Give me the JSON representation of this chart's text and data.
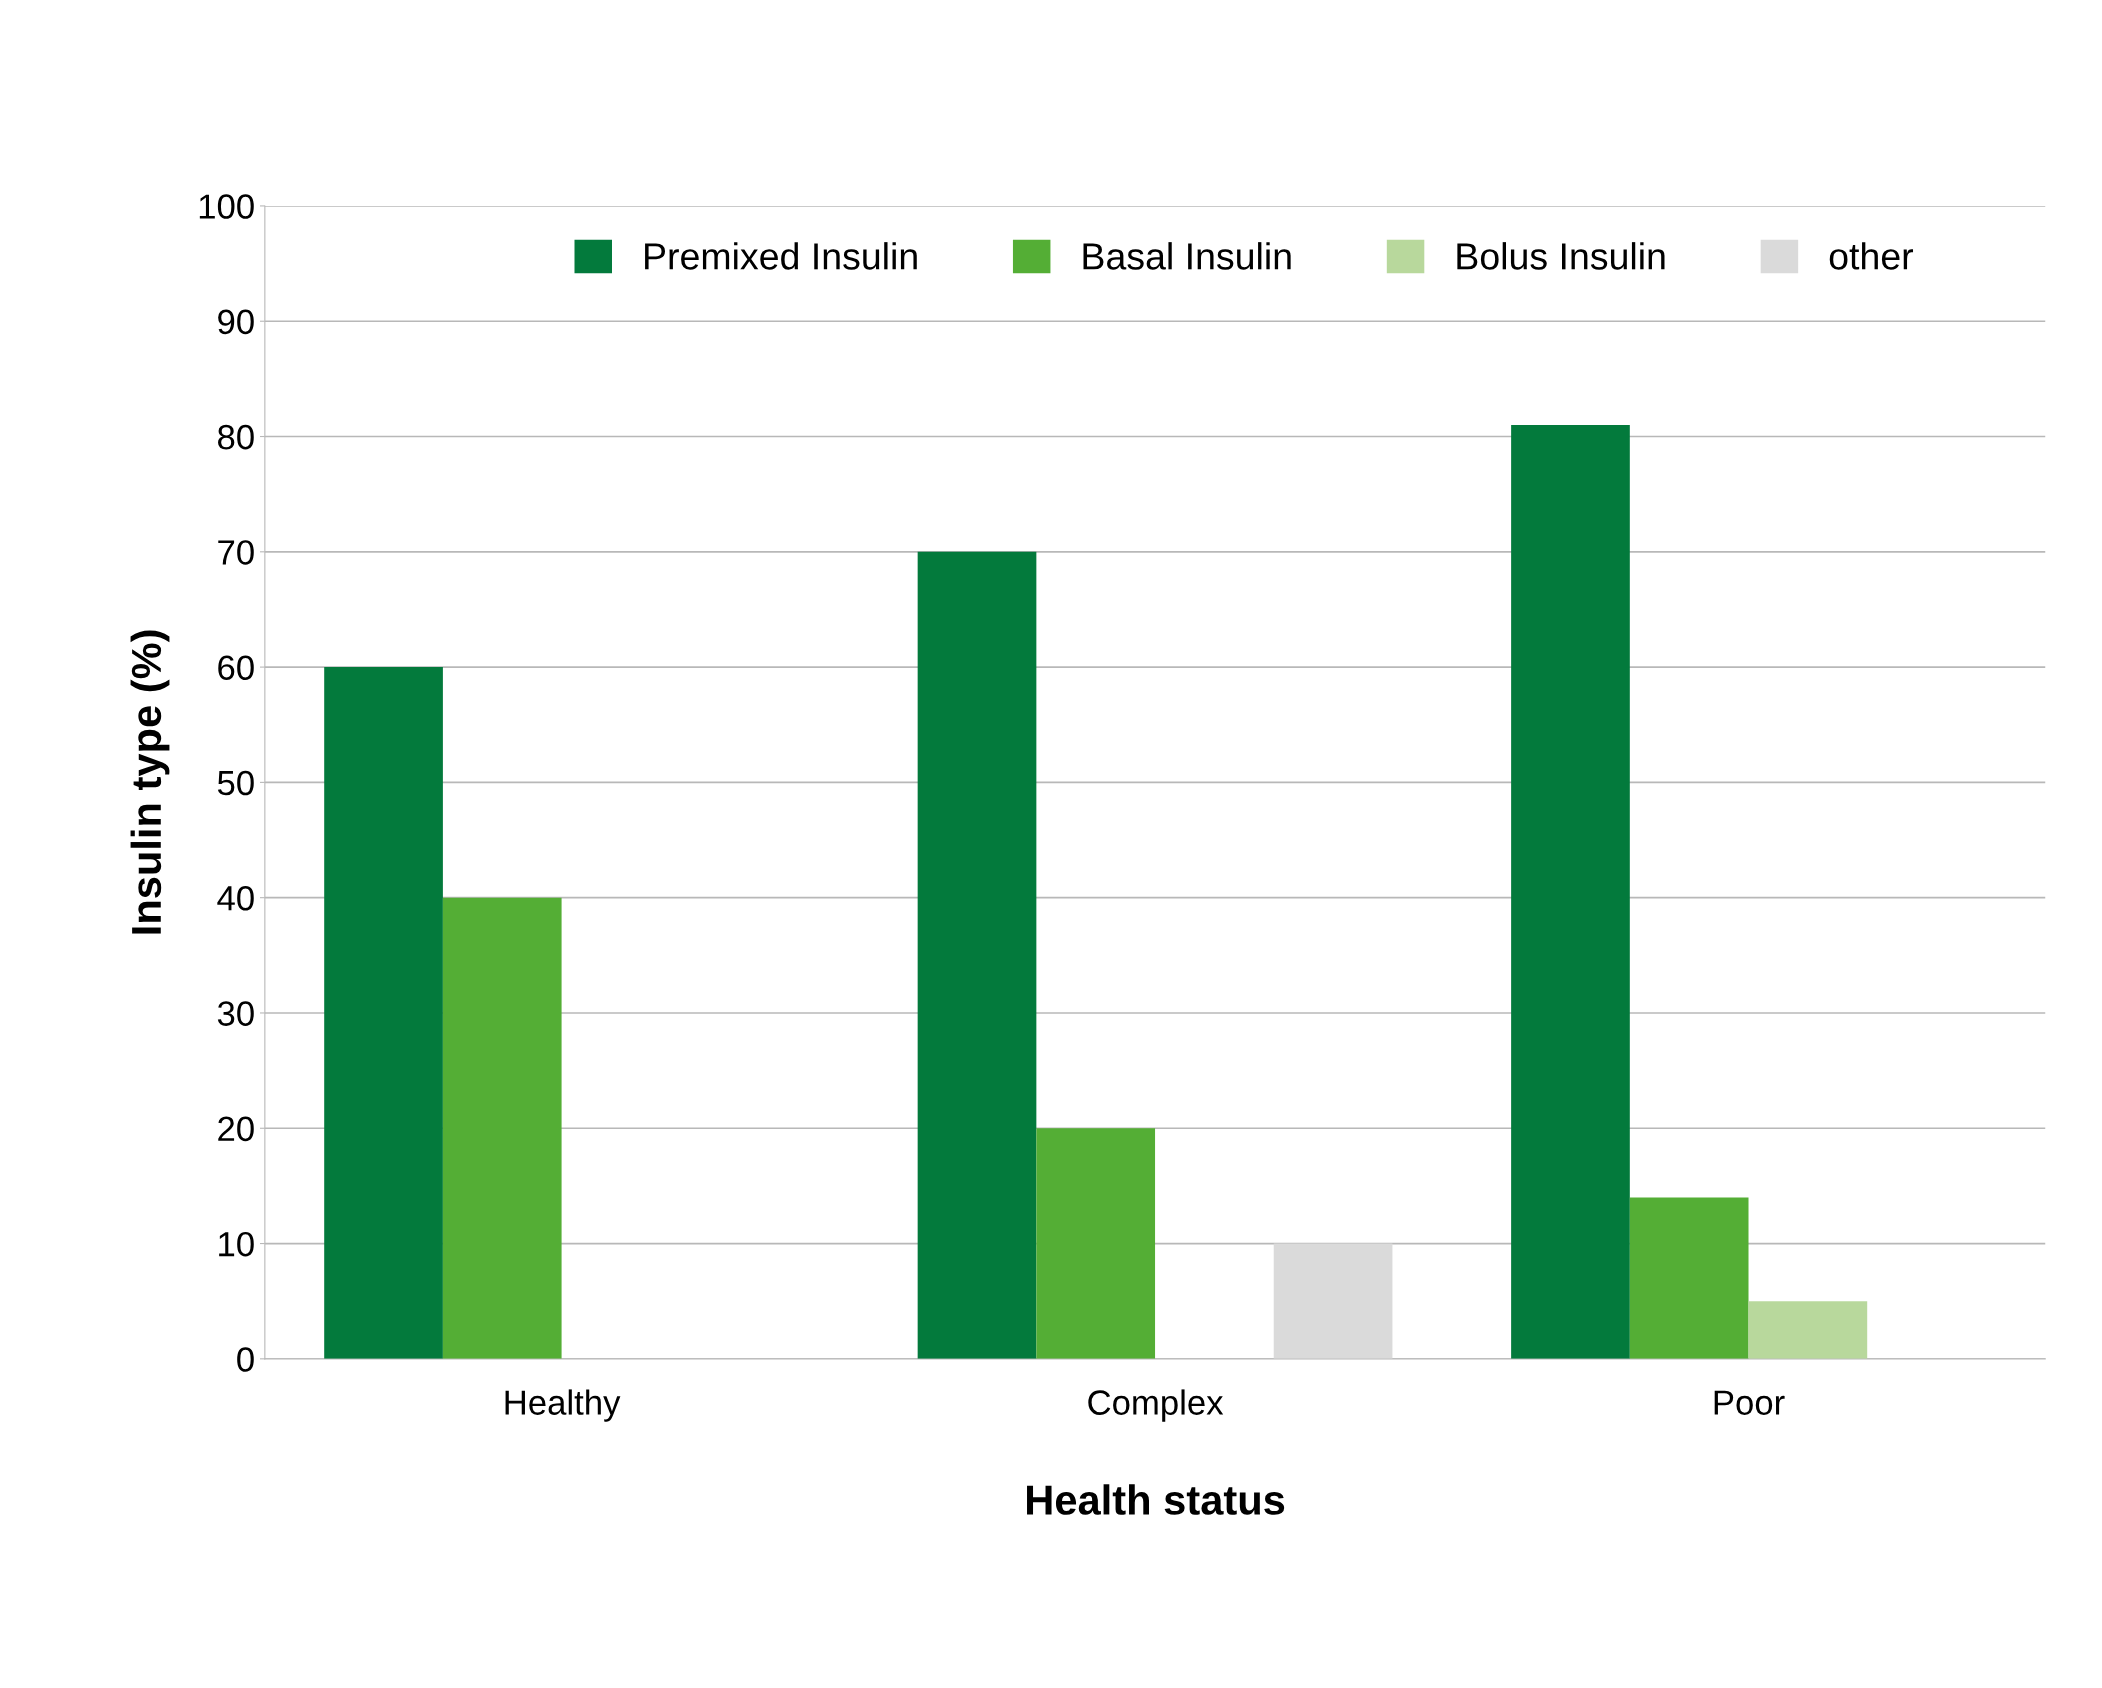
{
  "chart_data": {
    "type": "bar",
    "xlabel": "Health status",
    "ylabel": "Insulin type (%)",
    "categories": [
      "Healthy",
      "Complex",
      "Poor"
    ],
    "series": [
      {
        "name": "Premixed Insulin",
        "color": "#037a3c",
        "values": [
          60,
          70,
          81
        ]
      },
      {
        "name": "Basal Insulin",
        "color": "#54ae35",
        "values": [
          40,
          20,
          14
        ]
      },
      {
        "name": "Bolus Insulin",
        "color": "#b8d89c",
        "values": [
          null,
          null,
          5
        ]
      },
      {
        "name": "other",
        "color": "#dadada",
        "values": [
          null,
          10,
          null
        ]
      }
    ],
    "ylim": [
      0,
      100
    ],
    "yticks": [
      0,
      10,
      20,
      30,
      40,
      50,
      60,
      70,
      80,
      90,
      100
    ],
    "grid": "y",
    "legend": "top"
  }
}
